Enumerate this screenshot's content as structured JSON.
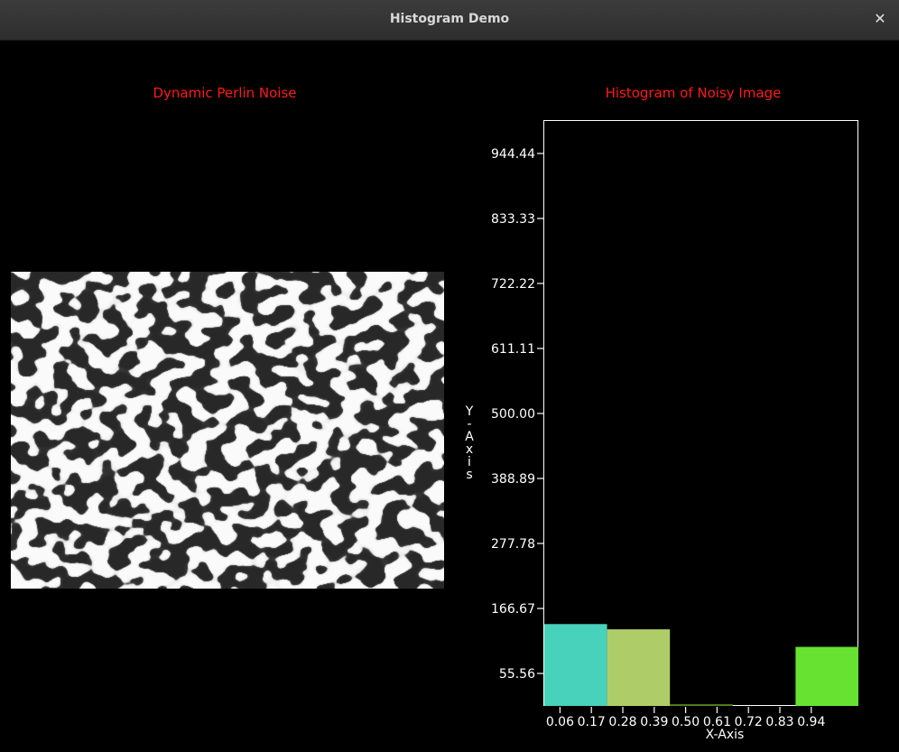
{
  "window": {
    "title": "Histogram Demo",
    "close_icon": "close-icon"
  },
  "left_panel": {
    "caption": "Dynamic Perlin Noise"
  },
  "right_panel": {
    "caption": "Histogram of Noisy Image"
  },
  "chart_data": {
    "type": "bar",
    "title": "Histogram of Noisy Image",
    "xlabel": "X-Axis",
    "ylabel": "Y-Axis",
    "ylim": [
      0,
      1000
    ],
    "y_ticks": [
      "55.56",
      "166.67",
      "277.78",
      "388.89",
      "500.00",
      "611.11",
      "722.22",
      "833.33",
      "944.44"
    ],
    "x_ticks": [
      "0.06",
      "0.17",
      "0.28",
      "0.39",
      "0.50",
      "0.61",
      "0.72",
      "0.83",
      "0.94"
    ],
    "bins": [
      {
        "value": 140,
        "color": "#48d1bb"
      },
      {
        "value": 131,
        "color": "#aecd68"
      },
      {
        "value": 3,
        "color": "#4f7e1e"
      },
      {
        "value": 0,
        "color": "#000000"
      },
      {
        "value": 101,
        "color": "#67e231"
      }
    ]
  }
}
